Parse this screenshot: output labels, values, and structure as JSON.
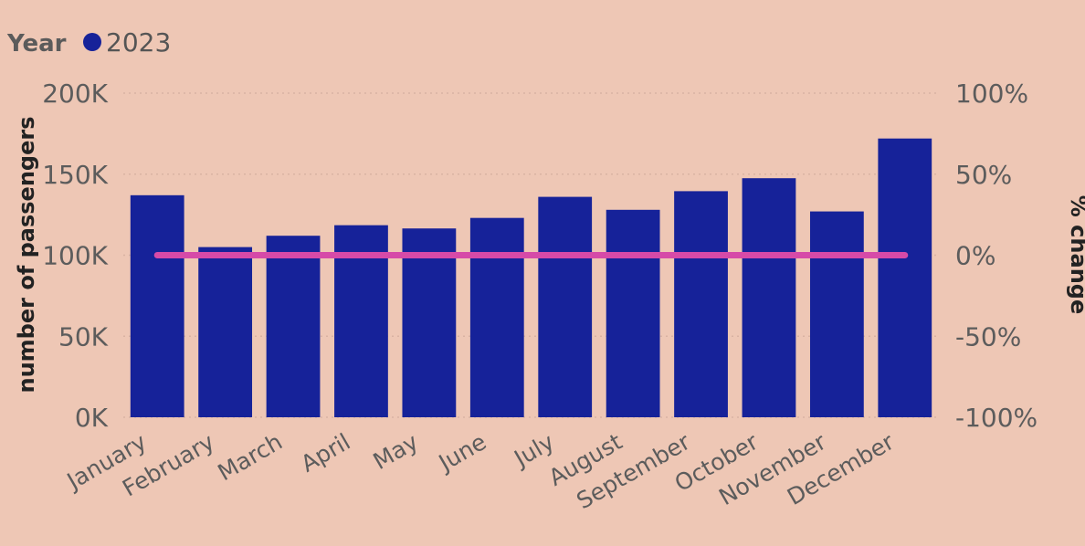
{
  "legend": {
    "title": "Year",
    "items": [
      "2023"
    ]
  },
  "colors": {
    "background": "#eec7b5",
    "bars": "#162299",
    "line": "#d64aa8",
    "grid": "#d9b3a3"
  },
  "chart_data": {
    "type": "bar",
    "title": "",
    "categories": [
      "January",
      "February",
      "March",
      "April",
      "May",
      "June",
      "July",
      "August",
      "September",
      "October",
      "November",
      "December"
    ],
    "series": [
      {
        "name": "2023",
        "type": "bar",
        "axis": "left",
        "values": [
          137000,
          105000,
          112000,
          118500,
          116500,
          123000,
          136000,
          128000,
          139500,
          147500,
          127000,
          172000
        ]
      },
      {
        "name": "% change",
        "type": "line",
        "axis": "right",
        "values": [
          0,
          0,
          0,
          0,
          0,
          0,
          0,
          0,
          0,
          0,
          0,
          0
        ]
      }
    ],
    "xlabel": "",
    "ylabel": "number of passengers",
    "y2label": "% change",
    "ylim": [
      0,
      200000
    ],
    "y2lim": [
      -100,
      100
    ],
    "yticks": [
      "0K",
      "50K",
      "100K",
      "150K",
      "200K"
    ],
    "y2ticks": [
      "-100%",
      "-50%",
      "0%",
      "50%",
      "100%"
    ],
    "grid": true,
    "legend_position": "top-left"
  }
}
